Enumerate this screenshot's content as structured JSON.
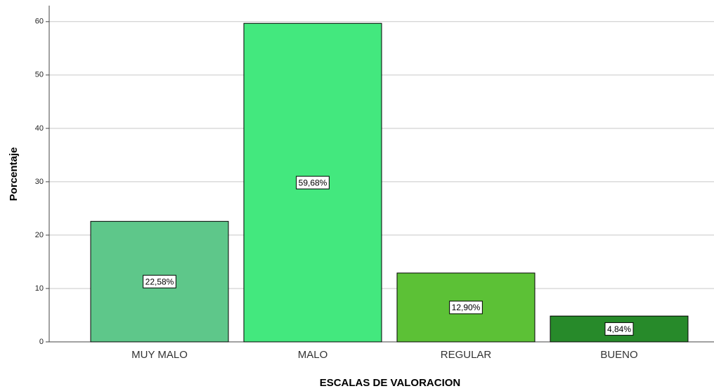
{
  "chart_data": {
    "type": "bar",
    "x_label": "ESCALAS DE VALORACION",
    "y_label": "Porcentaje",
    "categories": [
      "MUY MALO",
      "MALO",
      "REGULAR",
      "BUENO"
    ],
    "values": [
      22.58,
      59.68,
      12.9,
      4.84
    ],
    "value_labels": [
      "22,58%",
      "59,68%",
      "12,90%",
      "4,84%"
    ],
    "colors": [
      "#5ec78a",
      "#43e87e",
      "#5cc136",
      "#278a2a"
    ],
    "ylim": [
      0,
      63
    ],
    "yticks": [
      0,
      10,
      20,
      30,
      40,
      50,
      60
    ],
    "grid": true
  }
}
